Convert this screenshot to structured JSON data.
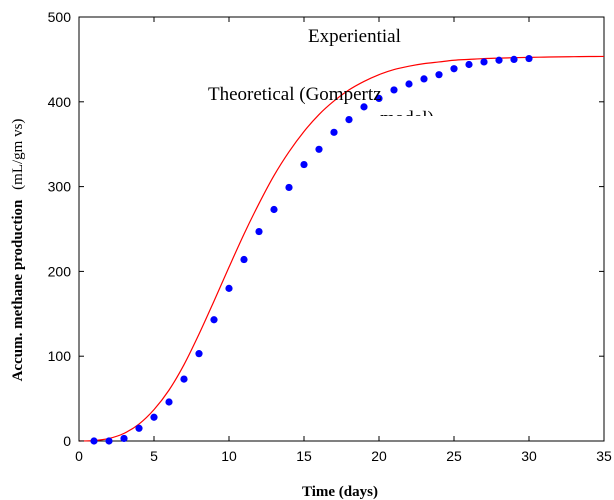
{
  "chart_data": {
    "type": "scatter",
    "xlabel": "Time (days)",
    "ylabel": "Accum. methane production",
    "ylabel_unit": "(mL/gm vs)",
    "xlim": [
      0,
      35
    ],
    "ylim": [
      0,
      500
    ],
    "xticks": [
      0,
      5,
      10,
      15,
      20,
      25,
      30,
      35
    ],
    "yticks": [
      0,
      100,
      200,
      300,
      400,
      500
    ],
    "grid": false,
    "legend_position": "top",
    "series": [
      {
        "name": "Experiential",
        "kind": "markers",
        "color": "#0000ff",
        "x": [
          1,
          2,
          3,
          4,
          5,
          6,
          7,
          8,
          9,
          10,
          11,
          12,
          13,
          14,
          15,
          16,
          17,
          18,
          19,
          20,
          21,
          22,
          23,
          24,
          25,
          26,
          27,
          28,
          29,
          30
        ],
        "y": [
          0,
          0,
          3,
          15,
          28,
          46,
          73,
          103,
          143,
          180,
          214,
          247,
          273,
          299,
          326,
          344,
          364,
          379,
          394,
          404,
          414,
          421,
          427,
          432,
          439,
          444,
          447,
          449,
          450,
          451
        ]
      },
      {
        "name": "Theoretical (Gompertz model)",
        "legend_visible": "Theoretical (Gompertz",
        "kind": "line",
        "color": "#ff0000",
        "x": [
          0,
          1,
          2,
          3,
          4,
          5,
          6,
          7,
          8,
          9,
          10,
          11,
          12,
          13,
          14,
          15,
          16,
          17,
          18,
          19,
          20,
          21,
          22,
          23,
          24,
          25,
          26,
          27,
          28,
          29,
          30,
          31,
          32,
          33,
          34,
          35
        ],
        "y": [
          0,
          0.5,
          3,
          9,
          20,
          37,
          60,
          90,
          126,
          165,
          205,
          244,
          280,
          313,
          341,
          365,
          385,
          401,
          414,
          424,
          432,
          438,
          442,
          445,
          447,
          449,
          450,
          451,
          451.5,
          452,
          452.4,
          452.7,
          453,
          453.2,
          453.4,
          453.5
        ]
      }
    ]
  }
}
